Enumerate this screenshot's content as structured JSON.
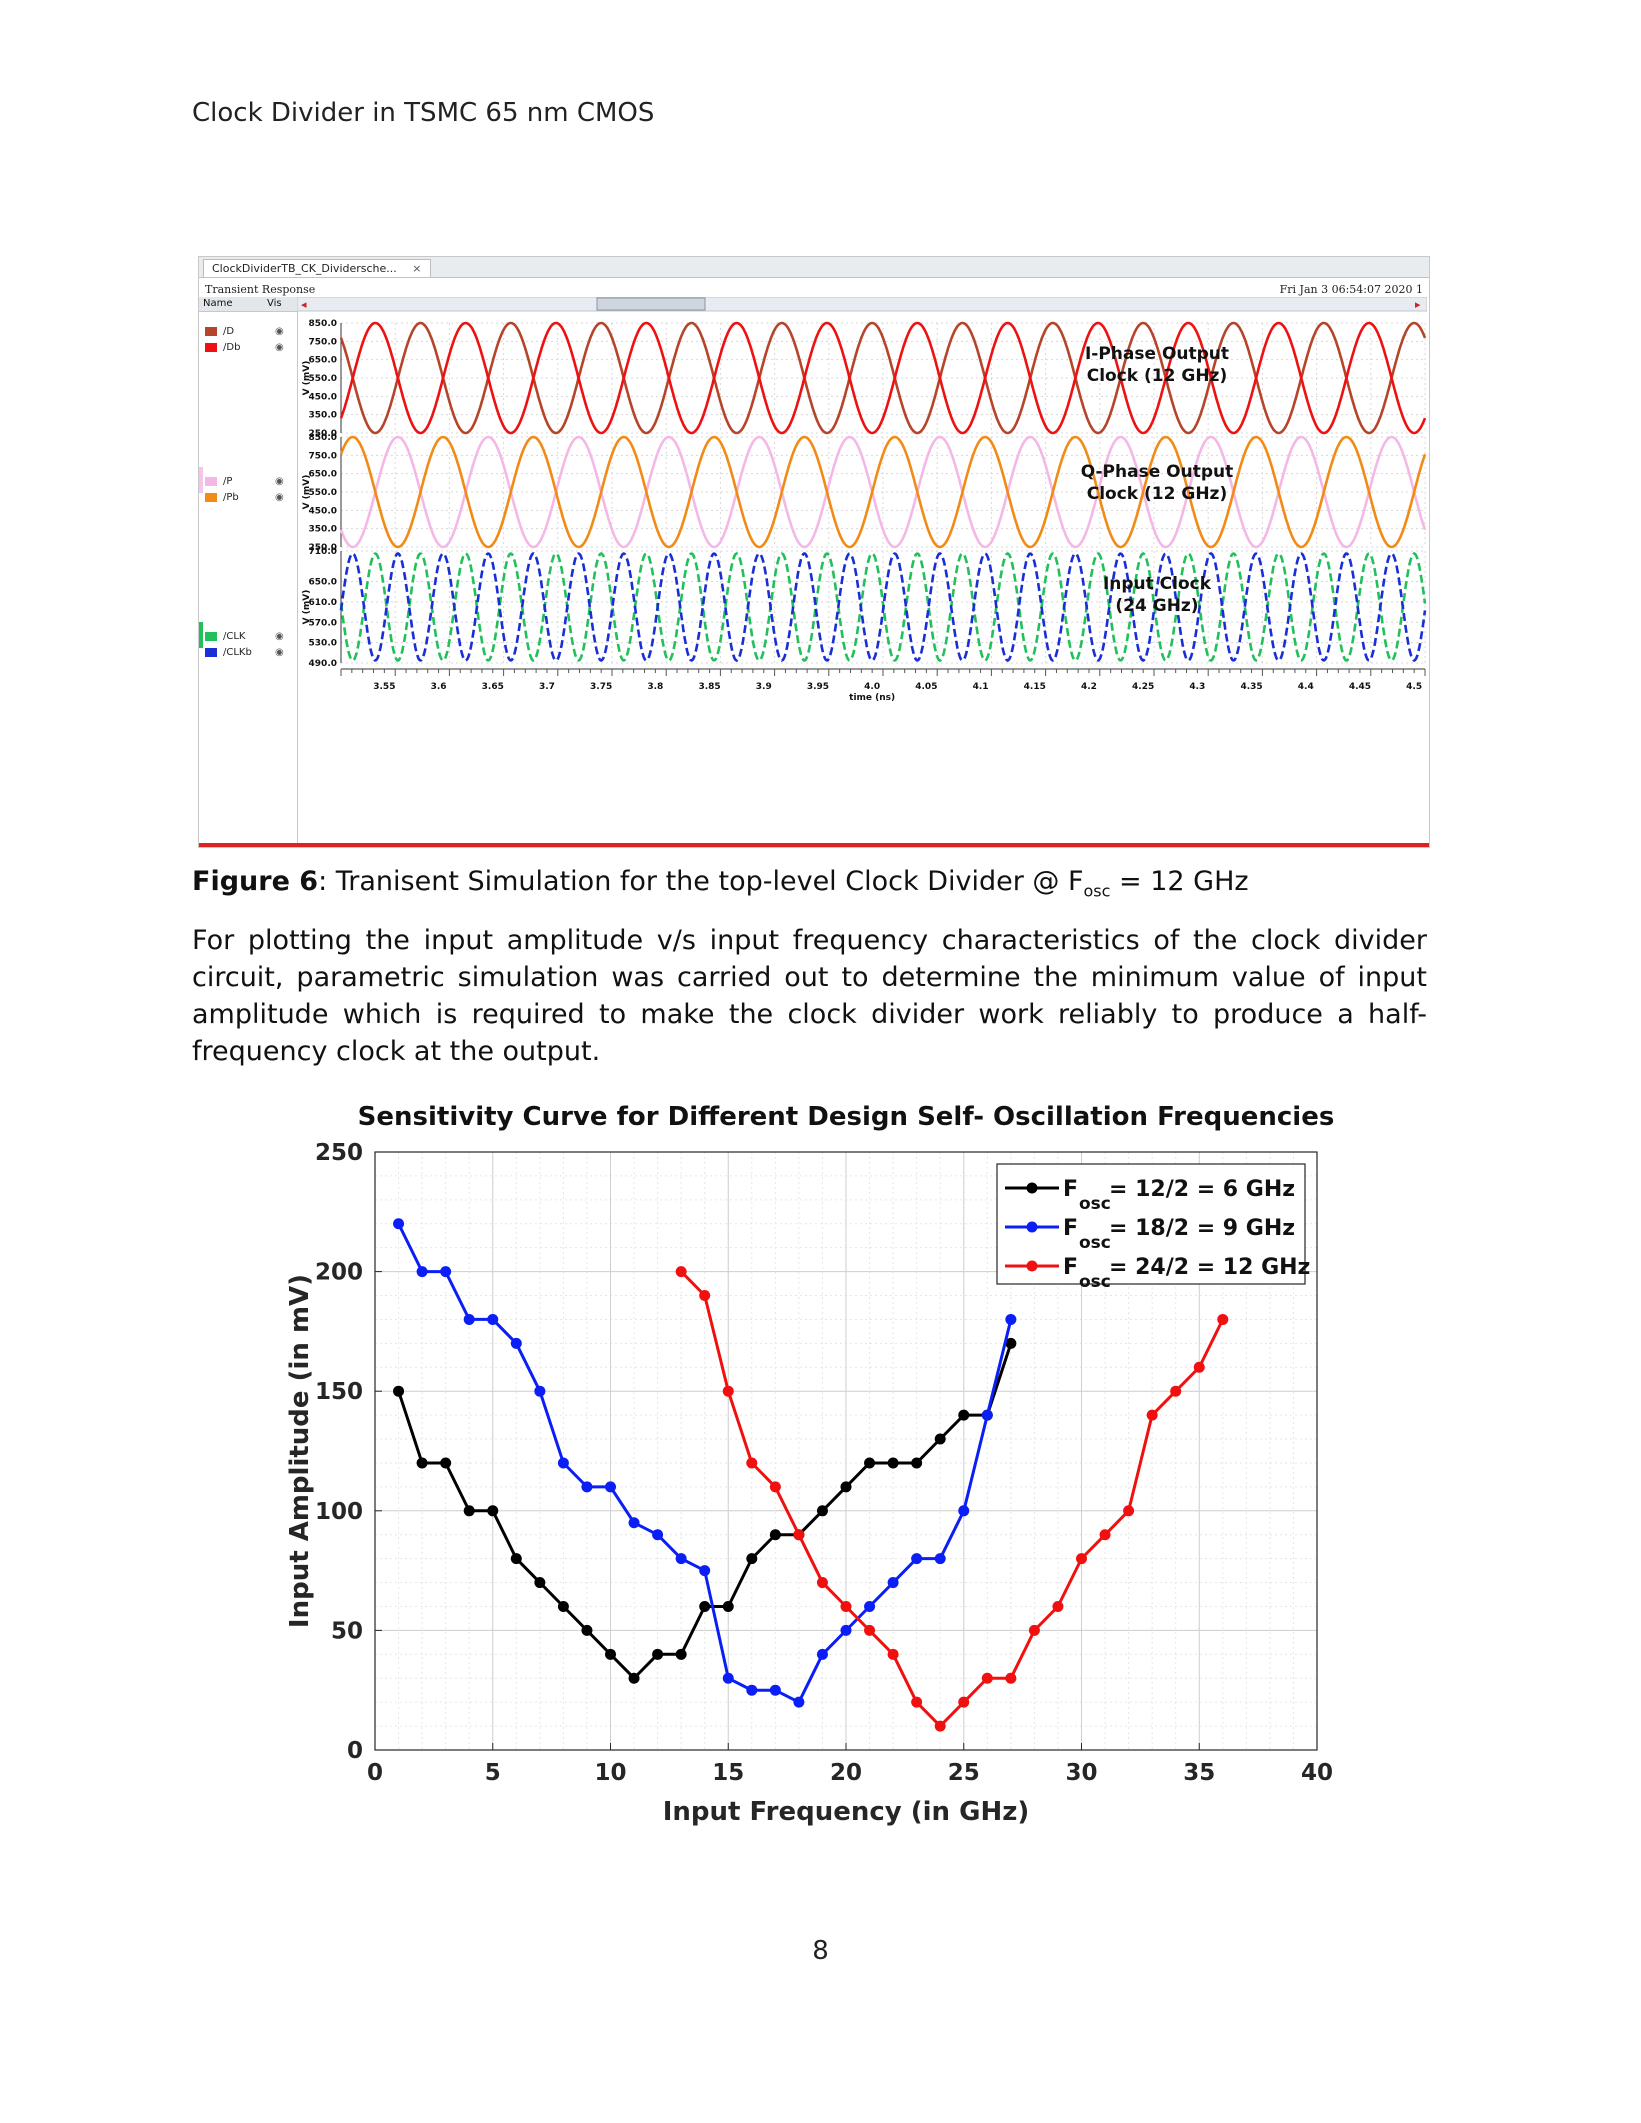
{
  "header": {
    "title": "Clock Divider in TSMC 65 nm CMOS"
  },
  "simulator": {
    "tab_label": "ClockDividerTB_CK_Dividersche...",
    "close_glyph": "×",
    "panel_title": "Transient Response",
    "timestamp": "Fri Jan 3 06:54:07 2020  1",
    "left_headers": {
      "name": "Name",
      "vis": "Vis"
    },
    "signals": [
      {
        "name": "/D",
        "color": "#b5452a"
      },
      {
        "name": "/Db",
        "color": "#ee1111"
      },
      {
        "name": "/P",
        "color": "#f4b8e6"
      },
      {
        "name": "/Pb",
        "color": "#f28a16"
      },
      {
        "name": "/CLK",
        "color": "#22c05a"
      },
      {
        "name": "/CLKb",
        "color": "#1a2ed6"
      }
    ],
    "panels": [
      {
        "ylabel": "V (mV)",
        "ticks": [
          "850.0",
          "750.0",
          "650.0",
          "550.0",
          "450.0",
          "350.0",
          "250.0"
        ],
        "annotation": [
          "I-Phase Output",
          "Clock (12 GHz)"
        ]
      },
      {
        "ylabel": "V (mV)",
        "ticks": [
          "850.0",
          "750.0",
          "650.0",
          "550.0",
          "450.0",
          "350.0",
          "250.0"
        ],
        "annotation": [
          "Q-Phase Output",
          "Clock (12 GHz)"
        ]
      },
      {
        "ylabel": "V (mV)",
        "ticks": [
          "710.0",
          "650.0",
          "610.0",
          "570.0",
          "530.0",
          "490.0"
        ],
        "annotation": [
          "Input Clock",
          "(24 GHz)"
        ]
      }
    ],
    "time_ticks": [
      "3.55",
      "3.6",
      "3.65",
      "3.7",
      "3.75",
      "3.8",
      "3.85",
      "3.9",
      "3.95",
      "4.0",
      "4.05",
      "4.1",
      "4.15",
      "4.2",
      "4.25",
      "4.3",
      "4.35",
      "4.4",
      "4.45",
      "4.5"
    ],
    "time_label": "time (ns)"
  },
  "caption": {
    "label": "Figure 6",
    "text": ": Tranisent Simulation for the top-level Clock Divider @ F",
    "sub": "osc",
    "tail": " = 12 GHz"
  },
  "paragraph": "For plotting the input amplitude v/s input frequency characteristics of the clock divider circuit, parametric simulation was carried out to determine the minimum value of input amplitude which is required to make the clock divider work reliably to produce a half-frequency clock at the output.",
  "chart_data": {
    "type": "line",
    "title": "Sensitivity Curve for Different Design Self- Oscillation Frequencies",
    "xlabel": "Input Frequency (in GHz)",
    "ylabel": "Input Amplitude (in mV)",
    "xlim": [
      0,
      40
    ],
    "ylim": [
      0,
      250
    ],
    "xticks": [
      0,
      5,
      10,
      15,
      20,
      25,
      30,
      35,
      40
    ],
    "yticks": [
      0,
      50,
      100,
      150,
      200,
      250
    ],
    "grid": true,
    "legend_position": "top-right",
    "series": [
      {
        "name": "F",
        "sub": "osc",
        "label": " = 12/2 = 6 GHz",
        "color": "#000000",
        "x": [
          1,
          2,
          3,
          4,
          5,
          6,
          7,
          8,
          9,
          10,
          11,
          12,
          13,
          14,
          15,
          16,
          17,
          18,
          19,
          20,
          21,
          22,
          23,
          24,
          25,
          26,
          27
        ],
        "y": [
          150,
          120,
          120,
          100,
          100,
          80,
          70,
          60,
          50,
          40,
          30,
          40,
          40,
          60,
          60,
          80,
          90,
          90,
          100,
          110,
          120,
          120,
          120,
          130,
          140,
          140,
          170
        ]
      },
      {
        "name": "F",
        "sub": "osc",
        "label": " = 18/2 = 9 GHz",
        "color": "#0a1ef5",
        "x": [
          1,
          2,
          3,
          4,
          5,
          6,
          7,
          8,
          9,
          10,
          11,
          12,
          13,
          14,
          15,
          16,
          17,
          18,
          19,
          20,
          21,
          22,
          23,
          24,
          25,
          26,
          27
        ],
        "y": [
          220,
          200,
          200,
          180,
          180,
          170,
          150,
          120,
          110,
          110,
          95,
          90,
          80,
          75,
          30,
          25,
          25,
          20,
          40,
          50,
          60,
          70,
          80,
          80,
          100,
          140,
          180
        ]
      },
      {
        "name": "F",
        "sub": "osc",
        "label": " = 24/2 = 12 GHz",
        "color": "#f01010",
        "x": [
          13,
          14,
          15,
          16,
          17,
          18,
          19,
          20,
          21,
          22,
          23,
          24,
          25,
          26,
          27,
          28,
          29,
          30,
          31,
          32,
          33,
          34,
          35,
          36
        ],
        "y": [
          200,
          190,
          150,
          120,
          110,
          90,
          70,
          60,
          50,
          40,
          20,
          10,
          20,
          30,
          30,
          50,
          60,
          80,
          90,
          100,
          140,
          150,
          160,
          180
        ]
      }
    ]
  },
  "page_number": "8"
}
